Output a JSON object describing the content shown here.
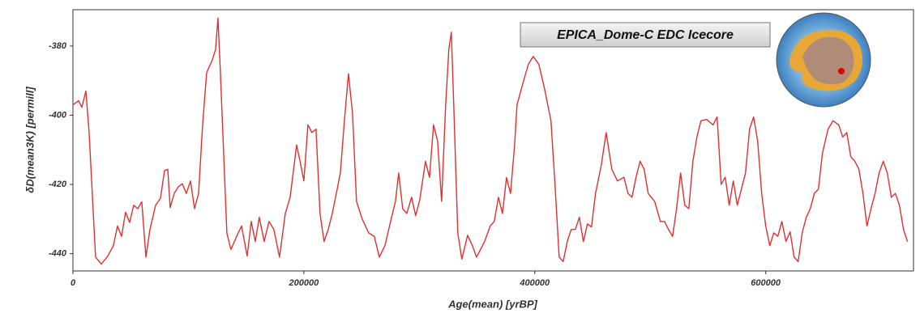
{
  "chart_data": {
    "type": "line",
    "annotation": "EPICA_Dome-C EDC Icecore",
    "x_label": "Age(mean) [yrBP]",
    "y_label": "δD(mean3K) [permill]",
    "x": [
      0,
      4900,
      7700,
      11200,
      14000,
      19600,
      24600,
      30200,
      35000,
      38600,
      42100,
      45600,
      49100,
      52600,
      56100,
      59600,
      63200,
      66700,
      71600,
      75800,
      79300,
      82100,
      84200,
      87700,
      91200,
      94700,
      98200,
      101800,
      105300,
      108800,
      112300,
      115800,
      120700,
      123500,
      125600,
      127700,
      133300,
      136800,
      141800,
      146000,
      150900,
      154400,
      157900,
      161400,
      165600,
      169800,
      174000,
      178900,
      183900,
      188100,
      193700,
      196500,
      200000,
      203500,
      207000,
      210500,
      214000,
      217500,
      221100,
      224600,
      228100,
      231600,
      235100,
      238600,
      242100,
      245600,
      250500,
      256100,
      261000,
      265300,
      270200,
      275100,
      279300,
      282100,
      285600,
      289100,
      293300,
      296800,
      300400,
      305300,
      308800,
      312300,
      315800,
      319300,
      322800,
      325600,
      327700,
      329800,
      333300,
      336800,
      341800,
      346000,
      349500,
      353000,
      356500,
      361400,
      364900,
      368500,
      372000,
      375500,
      379000,
      382500,
      384600,
      389500,
      394400,
      398600,
      403500,
      408400,
      414000,
      417500,
      421100,
      424600,
      428100,
      431600,
      435100,
      438600,
      442100,
      445600,
      449100,
      452600,
      457600,
      461800,
      466700,
      471600,
      477200,
      480700,
      484200,
      487700,
      491200,
      494700,
      498200,
      503800,
      508800,
      512300,
      515800,
      519300,
      522800,
      526300,
      529900,
      533400,
      536900,
      540400,
      543900,
      548800,
      554400,
      557900,
      561400,
      564900,
      568400,
      571900,
      575400,
      578900,
      582500,
      586000,
      589500,
      593000,
      596500,
      600000,
      603500,
      607000,
      610500,
      614000,
      617500,
      621100,
      624600,
      628100,
      631600,
      635100,
      638600,
      642100,
      645600,
      649100,
      654000,
      658300,
      663200,
      666700,
      670200,
      673700,
      677200,
      680700,
      684200,
      687700,
      691200,
      694700,
      698200,
      701800,
      705300,
      708800,
      712300,
      715800,
      719300,
      722800
    ],
    "series": [
      {
        "color": "#e03030",
        "values": [
          -397,
          -395.8,
          -397.7,
          -393,
          -405,
          -441,
          -443,
          -440.7,
          -437.7,
          -432,
          -435,
          -428,
          -431,
          -426,
          -427,
          -425,
          -441,
          -433,
          -426,
          -424,
          -416,
          -415.6,
          -426.7,
          -422.6,
          -420.7,
          -419.8,
          -422.6,
          -419,
          -427,
          -422.6,
          -402.8,
          -387.7,
          -384,
          -381,
          -371.9,
          -387.7,
          -434,
          -438.8,
          -435,
          -432,
          -440.7,
          -430.7,
          -436.5,
          -429.5,
          -436.5,
          -430.7,
          -433,
          -441,
          -428.4,
          -423.7,
          -408.6,
          -413,
          -419,
          -402.8,
          -405,
          -404,
          -428.4,
          -436.5,
          -433,
          -428.4,
          -422.6,
          -416.7,
          -401.6,
          -388,
          -399.3,
          -424.9,
          -430,
          -434,
          -435,
          -441,
          -437.7,
          -430.7,
          -424.9,
          -416.7,
          -427,
          -428.4,
          -423.7,
          -429,
          -424.4,
          -413.3,
          -418,
          -402.8,
          -407.4,
          -424.9,
          -397,
          -380.7,
          -376,
          -397,
          -434,
          -441.6,
          -434.7,
          -437.7,
          -441,
          -438.8,
          -436.5,
          -432,
          -430.7,
          -423.7,
          -428.4,
          -418,
          -422.6,
          -408.6,
          -397,
          -391,
          -385.3,
          -383,
          -385.3,
          -392.3,
          -401.6,
          -420,
          -441,
          -442.3,
          -436.5,
          -433,
          -433,
          -429.5,
          -436.5,
          -431.4,
          -432.3,
          -422.6,
          -414.4,
          -405,
          -415.6,
          -419,
          -417.9,
          -422.6,
          -423.7,
          -417.9,
          -413.3,
          -415.6,
          -422.6,
          -424.9,
          -430.7,
          -430.7,
          -433,
          -435,
          -427,
          -416.7,
          -426,
          -427,
          -413.3,
          -406.3,
          -401.6,
          -401.2,
          -402.8,
          -400.5,
          -420,
          -417.9,
          -426,
          -419,
          -426,
          -421.4,
          -416.7,
          -404,
          -400.5,
          -407.4,
          -422.6,
          -432,
          -437.7,
          -434,
          -435,
          -430.7,
          -436.5,
          -433.7,
          -441,
          -442.3,
          -434,
          -429.5,
          -427,
          -422.6,
          -421.4,
          -411,
          -404,
          -401.6,
          -402.8,
          -406.3,
          -405,
          -412,
          -413.3,
          -415.6,
          -422.6,
          -432,
          -427,
          -422.6,
          -416.7,
          -413.3,
          -416.7,
          -423.7,
          -422.6,
          -426,
          -433,
          -436.5
        ]
      }
    ],
    "xlim": [
      0,
      728000
    ],
    "ylim": [
      -445,
      -369.5
    ],
    "xticks": [
      0,
      200000,
      400000,
      600000
    ],
    "yticks": [
      -440,
      -420,
      -400,
      -380
    ]
  }
}
